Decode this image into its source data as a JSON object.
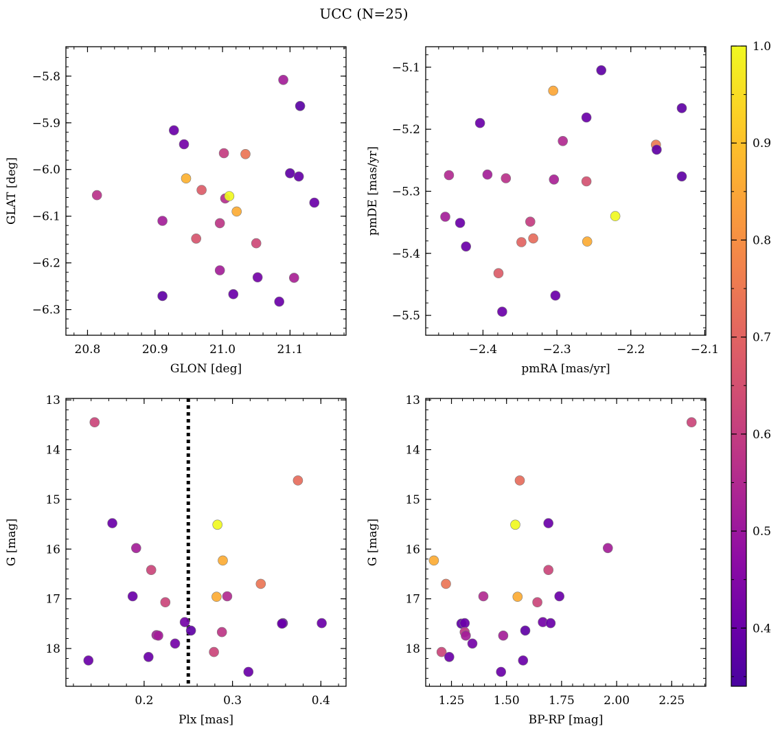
{
  "title": "UCC (N=25)",
  "colorbar": {
    "min": 0.34,
    "max": 1.0,
    "ticks": [
      0.4,
      0.5,
      0.6,
      0.7,
      0.8,
      0.9,
      1.0
    ],
    "tick_labels": [
      "0.4",
      "0.5",
      "0.6",
      "0.7",
      "0.8",
      "0.9",
      "1.0"
    ],
    "colormap": "plasma"
  },
  "chart_data": [
    {
      "type": "scatter",
      "xlabel": "GLON [deg]",
      "ylabel": "GLAT [deg]",
      "xlim": [
        20.768,
        21.183
      ],
      "ylim": [
        -6.355,
        -5.737
      ],
      "xticks": [
        20.8,
        20.9,
        21.0,
        21.1
      ],
      "xtick_labels": [
        "20.8",
        "20.9",
        "21.0",
        "21.1"
      ],
      "yticks": [
        -5.8,
        -5.9,
        -6.0,
        -6.1,
        -6.2,
        -6.3
      ],
      "ytick_labels": [
        "−5.8",
        "−5.9",
        "−6.0",
        "−6.1",
        "−6.2",
        "−6.3"
      ],
      "points": [
        {
          "x": 20.814,
          "y": -6.055,
          "c": 0.57
        },
        {
          "x": 20.911,
          "y": -6.271,
          "c": 0.38
        },
        {
          "x": 20.911,
          "y": -6.11,
          "c": 0.52
        },
        {
          "x": 20.928,
          "y": -5.916,
          "c": 0.4
        },
        {
          "x": 20.943,
          "y": -5.946,
          "c": 0.42
        },
        {
          "x": 20.946,
          "y": -6.019,
          "c": 0.87
        },
        {
          "x": 20.961,
          "y": -6.148,
          "c": 0.66
        },
        {
          "x": 20.969,
          "y": -6.044,
          "c": 0.68
        },
        {
          "x": 20.996,
          "y": -6.115,
          "c": 0.58
        },
        {
          "x": 20.996,
          "y": -6.216,
          "c": 0.52
        },
        {
          "x": 21.002,
          "y": -5.965,
          "c": 0.6
        },
        {
          "x": 21.004,
          "y": -6.062,
          "c": 0.56
        },
        {
          "x": 21.01,
          "y": -6.057,
          "c": 1.0
        },
        {
          "x": 21.016,
          "y": -6.267,
          "c": 0.4
        },
        {
          "x": 21.021,
          "y": -6.09,
          "c": 0.86
        },
        {
          "x": 21.034,
          "y": -5.967,
          "c": 0.74
        },
        {
          "x": 21.05,
          "y": -6.158,
          "c": 0.63
        },
        {
          "x": 21.052,
          "y": -6.231,
          "c": 0.42
        },
        {
          "x": 21.084,
          "y": -6.283,
          "c": 0.4
        },
        {
          "x": 21.09,
          "y": -5.808,
          "c": 0.52
        },
        {
          "x": 21.1,
          "y": -6.008,
          "c": 0.38
        },
        {
          "x": 21.106,
          "y": -6.232,
          "c": 0.53
        },
        {
          "x": 21.113,
          "y": -6.015,
          "c": 0.39
        },
        {
          "x": 21.115,
          "y": -5.864,
          "c": 0.37
        },
        {
          "x": 21.136,
          "y": -6.071,
          "c": 0.4
        }
      ]
    },
    {
      "type": "scatter",
      "xlabel": "pmRA [mas/yr]",
      "ylabel": "pmDE [mas/yr]",
      "xlim": [
        -2.4775,
        -2.0985
      ],
      "ylim": [
        -5.532,
        -5.067
      ],
      "xticks": [
        -2.4,
        -2.3,
        -2.2,
        -2.1
      ],
      "xtick_labels": [
        "−2.4",
        "−2.3",
        "−2.2",
        "−2.1"
      ],
      "yticks": [
        -5.1,
        -5.2,
        -5.3,
        -5.4,
        -5.5
      ],
      "ytick_labels": [
        "−5.1",
        "−5.2",
        "−5.3",
        "−5.4",
        "−5.5"
      ],
      "points": [
        {
          "x": -2.451,
          "y": -5.341,
          "c": 0.52
        },
        {
          "x": -2.446,
          "y": -5.274,
          "c": 0.55
        },
        {
          "x": -2.431,
          "y": -5.351,
          "c": 0.4
        },
        {
          "x": -2.423,
          "y": -5.389,
          "c": 0.4
        },
        {
          "x": -2.404,
          "y": -5.19,
          "c": 0.4
        },
        {
          "x": -2.394,
          "y": -5.273,
          "c": 0.52
        },
        {
          "x": -2.379,
          "y": -5.432,
          "c": 0.68
        },
        {
          "x": -2.374,
          "y": -5.494,
          "c": 0.4
        },
        {
          "x": -2.369,
          "y": -5.279,
          "c": 0.57
        },
        {
          "x": -2.348,
          "y": -5.382,
          "c": 0.7
        },
        {
          "x": -2.336,
          "y": -5.349,
          "c": 0.6
        },
        {
          "x": -2.332,
          "y": -5.376,
          "c": 0.72
        },
        {
          "x": -2.305,
          "y": -5.138,
          "c": 0.85
        },
        {
          "x": -2.304,
          "y": -5.281,
          "c": 0.53
        },
        {
          "x": -2.302,
          "y": -5.468,
          "c": 0.4
        },
        {
          "x": -2.292,
          "y": -5.219,
          "c": 0.55
        },
        {
          "x": -2.26,
          "y": -5.181,
          "c": 0.4
        },
        {
          "x": -2.26,
          "y": -5.284,
          "c": 0.65
        },
        {
          "x": -2.259,
          "y": -5.381,
          "c": 0.86
        },
        {
          "x": -2.24,
          "y": -5.105,
          "c": 0.38
        },
        {
          "x": -2.221,
          "y": -5.34,
          "c": 1.0
        },
        {
          "x": -2.166,
          "y": -5.225,
          "c": 0.75
        },
        {
          "x": -2.165,
          "y": -5.233,
          "c": 0.38
        },
        {
          "x": -2.131,
          "y": -5.166,
          "c": 0.38
        },
        {
          "x": -2.131,
          "y": -5.276,
          "c": 0.38
        }
      ]
    },
    {
      "type": "scatter",
      "xlabel": "Plx [mas]",
      "ylabel": "G [mag]",
      "xlim": [
        0.1115,
        0.4285
      ],
      "ylim": [
        18.76,
        12.97
      ],
      "xticks": [
        0.2,
        0.3,
        0.4
      ],
      "xtick_labels": [
        "0.2",
        "0.3",
        "0.4"
      ],
      "yticks": [
        13,
        14,
        15,
        16,
        17,
        18
      ],
      "ytick_labels": [
        "13",
        "14",
        "15",
        "16",
        "17",
        "18"
      ],
      "vline": {
        "x": 0.25,
        "style": "dotted"
      },
      "points": [
        {
          "x": 0.144,
          "y": 13.45,
          "c": 0.62
        },
        {
          "x": 0.374,
          "y": 14.62,
          "c": 0.72
        },
        {
          "x": 0.164,
          "y": 15.48,
          "c": 0.4
        },
        {
          "x": 0.283,
          "y": 15.51,
          "c": 1.0
        },
        {
          "x": 0.191,
          "y": 15.98,
          "c": 0.52
        },
        {
          "x": 0.289,
          "y": 16.23,
          "c": 0.86
        },
        {
          "x": 0.208,
          "y": 16.42,
          "c": 0.62
        },
        {
          "x": 0.332,
          "y": 16.7,
          "c": 0.74
        },
        {
          "x": 0.187,
          "y": 16.95,
          "c": 0.4
        },
        {
          "x": 0.282,
          "y": 16.96,
          "c": 0.86
        },
        {
          "x": 0.294,
          "y": 16.95,
          "c": 0.55
        },
        {
          "x": 0.224,
          "y": 17.07,
          "c": 0.62
        },
        {
          "x": 0.246,
          "y": 17.47,
          "c": 0.42
        },
        {
          "x": 0.357,
          "y": 17.49,
          "c": 0.38
        },
        {
          "x": 0.356,
          "y": 17.5,
          "c": 0.4
        },
        {
          "x": 0.401,
          "y": 17.49,
          "c": 0.4
        },
        {
          "x": 0.253,
          "y": 17.64,
          "c": 0.38
        },
        {
          "x": 0.288,
          "y": 17.67,
          "c": 0.58
        },
        {
          "x": 0.214,
          "y": 17.73,
          "c": 0.52
        },
        {
          "x": 0.216,
          "y": 17.74,
          "c": 0.52
        },
        {
          "x": 0.235,
          "y": 17.9,
          "c": 0.42
        },
        {
          "x": 0.279,
          "y": 18.07,
          "c": 0.62
        },
        {
          "x": 0.205,
          "y": 18.17,
          "c": 0.4
        },
        {
          "x": 0.137,
          "y": 18.24,
          "c": 0.4
        },
        {
          "x": 0.318,
          "y": 18.47,
          "c": 0.4
        }
      ]
    },
    {
      "type": "scatter",
      "xlabel": "BP-RP [mag]",
      "ylabel": "G [mag]",
      "xlim": [
        1.133,
        2.405
      ],
      "ylim": [
        18.76,
        12.97
      ],
      "xticks": [
        1.25,
        1.5,
        1.75,
        2.0,
        2.25
      ],
      "xtick_labels": [
        "1.25",
        "1.50",
        "1.75",
        "2.00",
        "2.25"
      ],
      "yticks": [
        13,
        14,
        15,
        16,
        17,
        18
      ],
      "ytick_labels": [
        "13",
        "14",
        "15",
        "16",
        "17",
        "18"
      ],
      "points": [
        {
          "x": 2.34,
          "y": 13.45,
          "c": 0.62
        },
        {
          "x": 1.56,
          "y": 14.62,
          "c": 0.72
        },
        {
          "x": 1.54,
          "y": 15.51,
          "c": 1.0
        },
        {
          "x": 1.69,
          "y": 15.48,
          "c": 0.4
        },
        {
          "x": 1.96,
          "y": 15.98,
          "c": 0.52
        },
        {
          "x": 1.17,
          "y": 16.23,
          "c": 0.86
        },
        {
          "x": 1.69,
          "y": 16.42,
          "c": 0.62
        },
        {
          "x": 1.225,
          "y": 16.7,
          "c": 0.74
        },
        {
          "x": 1.395,
          "y": 16.95,
          "c": 0.55
        },
        {
          "x": 1.55,
          "y": 16.96,
          "c": 0.86
        },
        {
          "x": 1.74,
          "y": 16.95,
          "c": 0.4
        },
        {
          "x": 1.64,
          "y": 17.07,
          "c": 0.62
        },
        {
          "x": 1.295,
          "y": 17.5,
          "c": 0.38
        },
        {
          "x": 1.31,
          "y": 17.49,
          "c": 0.4
        },
        {
          "x": 1.665,
          "y": 17.47,
          "c": 0.42
        },
        {
          "x": 1.7,
          "y": 17.49,
          "c": 0.4
        },
        {
          "x": 1.585,
          "y": 17.64,
          "c": 0.38
        },
        {
          "x": 1.31,
          "y": 17.67,
          "c": 0.58
        },
        {
          "x": 1.315,
          "y": 17.74,
          "c": 0.52
        },
        {
          "x": 1.485,
          "y": 17.74,
          "c": 0.52
        },
        {
          "x": 1.345,
          "y": 17.9,
          "c": 0.42
        },
        {
          "x": 1.205,
          "y": 18.07,
          "c": 0.62
        },
        {
          "x": 1.24,
          "y": 18.17,
          "c": 0.4
        },
        {
          "x": 1.575,
          "y": 18.24,
          "c": 0.4
        },
        {
          "x": 1.475,
          "y": 18.47,
          "c": 0.4
        }
      ]
    }
  ]
}
